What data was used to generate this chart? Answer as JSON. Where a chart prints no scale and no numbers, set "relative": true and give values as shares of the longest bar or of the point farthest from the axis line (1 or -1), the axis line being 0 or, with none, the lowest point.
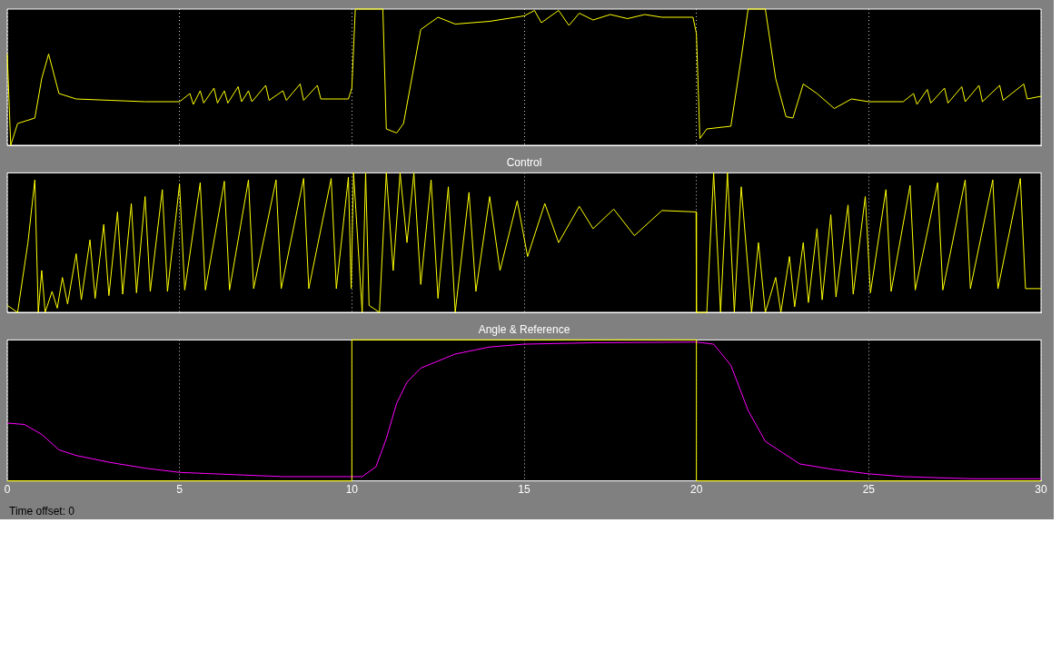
{
  "chart_data": [
    {
      "type": "line",
      "relative": true,
      "xlim": [
        0,
        30
      ],
      "xticks": [
        0,
        5,
        10,
        15,
        20,
        25,
        30
      ],
      "tick_labels": false,
      "grid": "x",
      "series": [
        {
          "color": "#ffff00",
          "x": [
            0,
            0.1,
            0.3,
            0.8,
            1.0,
            1.2,
            1.5,
            2,
            3,
            4,
            5,
            5.3,
            5.4,
            5.6,
            5.7,
            6,
            6.1,
            6.3,
            6.4,
            6.7,
            6.8,
            7,
            7.1,
            7.5,
            7.6,
            8,
            8.1,
            8.5,
            8.6,
            9,
            9.1,
            9.9,
            10,
            10.1,
            10.9,
            11,
            11.3,
            11.5,
            12,
            12.5,
            13,
            14,
            15,
            15.3,
            15.5,
            16,
            16.3,
            16.6,
            17,
            17.5,
            18,
            18.5,
            19,
            19.9,
            20,
            20.1,
            20.3,
            21,
            21.3,
            21.5,
            22,
            22.3,
            22.6,
            22.8,
            23.1,
            23.5,
            24,
            24.5,
            25,
            26,
            26.3,
            26.4,
            26.7,
            26.8,
            27.2,
            27.3,
            27.7,
            27.8,
            28.2,
            28.3,
            28.8,
            28.9,
            29.5,
            29.6,
            30
          ],
          "values": [
            0.67,
            0,
            0.16,
            0.2,
            0.49,
            0.67,
            0.38,
            0.34,
            0.33,
            0.32,
            0.32,
            0.38,
            0.3,
            0.4,
            0.31,
            0.42,
            0.31,
            0.4,
            0.31,
            0.43,
            0.32,
            0.4,
            0.32,
            0.44,
            0.33,
            0.4,
            0.33,
            0.45,
            0.33,
            0.44,
            0.34,
            0.34,
            0.42,
            1,
            1,
            0.12,
            0.09,
            0.16,
            0.85,
            0.94,
            0.89,
            0.91,
            0.95,
            0.99,
            0.9,
            0.99,
            0.88,
            0.97,
            0.92,
            0.96,
            0.93,
            0.96,
            0.94,
            0.94,
            0.82,
            0.05,
            0.12,
            0.14,
            0.64,
            1,
            1,
            0.49,
            0.21,
            0.2,
            0.45,
            0.38,
            0.27,
            0.34,
            0.32,
            0.32,
            0.38,
            0.3,
            0.41,
            0.31,
            0.42,
            0.31,
            0.43,
            0.32,
            0.44,
            0.32,
            0.44,
            0.33,
            0.45,
            0.34,
            0.36
          ]
        }
      ]
    },
    {
      "type": "line",
      "title": "Control",
      "relative": true,
      "xlim": [
        0,
        30
      ],
      "xticks": [
        0,
        5,
        10,
        15,
        20,
        25,
        30
      ],
      "tick_labels": false,
      "grid": "x",
      "series": [
        {
          "color": "#ffff00",
          "x": [
            0,
            0.3,
            0.6,
            0.8,
            0.9,
            1.0,
            1.1,
            1.3,
            1.45,
            1.6,
            1.75,
            2.0,
            2.15,
            2.4,
            2.55,
            2.8,
            2.95,
            3.2,
            3.35,
            3.6,
            3.75,
            4.0,
            4.15,
            4.5,
            4.65,
            5.0,
            5.15,
            5.6,
            5.75,
            6.3,
            6.45,
            7.0,
            7.15,
            7.8,
            7.95,
            8.6,
            8.75,
            9.4,
            9.55,
            9.9,
            9.98,
            10.05,
            10.3,
            10.4,
            10.5,
            10.8,
            11.0,
            11.2,
            11.4,
            11.6,
            11.8,
            12.0,
            12.3,
            12.5,
            12.8,
            13.0,
            13.4,
            13.6,
            14.0,
            14.3,
            14.8,
            15.1,
            15.6,
            16.0,
            16.6,
            17.0,
            17.6,
            18.2,
            19.0,
            19.99,
            20.0,
            20.3,
            20.5,
            20.7,
            20.9,
            21.1,
            21.3,
            21.6,
            21.8,
            22.0,
            22.3,
            22.45,
            22.7,
            22.85,
            23.1,
            23.25,
            23.5,
            23.65,
            23.9,
            24.05,
            24.4,
            24.55,
            24.9,
            25.05,
            25.5,
            25.65,
            26.2,
            26.35,
            27.0,
            27.15,
            27.8,
            27.95,
            28.6,
            28.75,
            29.4,
            29.55,
            30
          ],
          "values": [
            0.05,
            0,
            0.5,
            0.95,
            0,
            0.3,
            0,
            0.15,
            0.03,
            0.25,
            0.06,
            0.42,
            0.09,
            0.52,
            0.1,
            0.63,
            0.12,
            0.72,
            0.13,
            0.78,
            0.14,
            0.83,
            0.15,
            0.88,
            0.15,
            0.92,
            0.16,
            0.93,
            0.16,
            0.94,
            0.16,
            0.95,
            0.17,
            0.95,
            0.17,
            0.96,
            0.17,
            0.96,
            0.17,
            0.97,
            0.17,
            1,
            0,
            1,
            0.05,
            0,
            1,
            0.3,
            1,
            0.5,
            1,
            0.2,
            0.95,
            0.1,
            0.9,
            0,
            0.86,
            0.15,
            0.83,
            0.3,
            0.8,
            0.4,
            0.78,
            0.5,
            0.76,
            0.6,
            0.74,
            0.55,
            0.73,
            0.72,
            0,
            0,
            1,
            0,
            1,
            0,
            0.9,
            0,
            0.5,
            0,
            0.25,
            0,
            0.4,
            0.04,
            0.5,
            0.07,
            0.6,
            0.09,
            0.7,
            0.11,
            0.77,
            0.13,
            0.83,
            0.14,
            0.88,
            0.15,
            0.91,
            0.16,
            0.93,
            0.16,
            0.95,
            0.17,
            0.95,
            0.17,
            0.96,
            0.17,
            0.17
          ]
        }
      ]
    },
    {
      "type": "line",
      "title": "Angle & Reference",
      "relative": true,
      "xlim": [
        0,
        30
      ],
      "xticks": [
        0,
        5,
        10,
        15,
        20,
        25,
        30
      ],
      "tick_labels": "x",
      "grid": "x",
      "annotations": [
        "Time offset: 0"
      ],
      "series": [
        {
          "type": "step",
          "color": "#ffff00",
          "x": [
            0,
            10,
            20,
            30
          ],
          "values": [
            0,
            1,
            0,
            0
          ]
        },
        {
          "color": "#ff00ff",
          "x": [
            0,
            0.5,
            1,
            1.5,
            2,
            3,
            4,
            5,
            6,
            8,
            10,
            10.3,
            10.7,
            11,
            11.3,
            11.6,
            12,
            13,
            14,
            15,
            17,
            20,
            20.5,
            21,
            21.5,
            22,
            22.5,
            23,
            24,
            25,
            26,
            28,
            30
          ],
          "values": [
            0.41,
            0.4,
            0.33,
            0.22,
            0.18,
            0.13,
            0.09,
            0.06,
            0.05,
            0.03,
            0.03,
            0.03,
            0.1,
            0.3,
            0.55,
            0.7,
            0.8,
            0.9,
            0.95,
            0.97,
            0.98,
            0.985,
            0.97,
            0.82,
            0.5,
            0.28,
            0.2,
            0.12,
            0.08,
            0.05,
            0.03,
            0.015,
            0.015
          ]
        }
      ]
    }
  ]
}
